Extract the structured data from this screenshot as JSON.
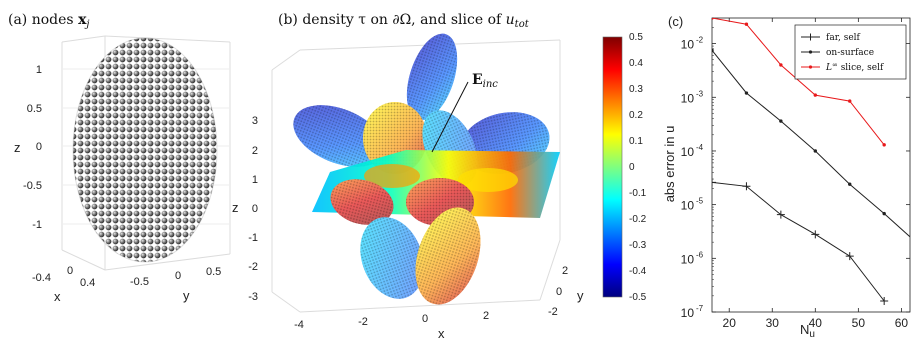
{
  "panel_a": {
    "title": "(a) nodes",
    "title_math": "x",
    "title_sub": "j",
    "zlabel": "z",
    "xlabel": "x",
    "ylabel": "y",
    "zticks": [
      "1",
      "0.5",
      "0",
      "-0.5",
      "-1"
    ],
    "xticks": [
      "-0.4",
      "0",
      "0.4"
    ],
    "yticks": [
      "-0.5",
      "0",
      "0.5"
    ]
  },
  "panel_b": {
    "title": "(b) density τ on ∂Ω, and slice of",
    "title_math": "u",
    "title_sub": "tot",
    "annotation": "E",
    "annotation_sub": "inc",
    "zlabel": "z",
    "xlabel": "x",
    "ylabel": "y",
    "zticks": [
      "3",
      "2",
      "1",
      "0",
      "-1",
      "-2",
      "-3"
    ],
    "xticks": [
      "-4",
      "-2",
      "0",
      "2"
    ],
    "yticks": [
      "2",
      "0",
      "-2"
    ],
    "colorbar_ticks": [
      "0.5",
      "0.4",
      "0.3",
      "0.2",
      "0.1",
      "0",
      "-0.1",
      "-0.2",
      "-0.3",
      "-0.4",
      "-0.5"
    ]
  },
  "chart_data": {
    "type": "line",
    "panel_label": "(c)",
    "xlabel": "N",
    "xlabel_sub": "u",
    "ylabel": "abs error in u",
    "yscale": "log",
    "xlim": [
      16,
      62
    ],
    "ylim": [
      1e-07,
      0.03
    ],
    "xticks": [
      20,
      30,
      40,
      50,
      60
    ],
    "xtick_labels": [
      "20",
      "30",
      "40",
      "50",
      "60"
    ],
    "ytick_labels": [
      "10",
      "10",
      "10",
      "10",
      "10",
      "10"
    ],
    "ytick_exponents": [
      "-2",
      "-3",
      "-4",
      "-5",
      "-6",
      "-7"
    ],
    "legend_position": "top-right",
    "series": [
      {
        "name": "far, self",
        "marker": "plus",
        "color": "#222222",
        "x": [
          16,
          24,
          32,
          40,
          48,
          56
        ],
        "y": [
          2.6e-05,
          2.2e-05,
          6.5e-06,
          2.8e-06,
          1.1e-06,
          1.6e-07
        ]
      },
      {
        "name": "on-surface",
        "marker": "dot",
        "color": "#222222",
        "x": [
          16,
          24,
          32,
          40,
          48,
          56,
          64
        ],
        "y": [
          0.0075,
          0.0012,
          0.00036,
          0.0001,
          2.4e-05,
          6.8e-06,
          1.8e-06
        ]
      },
      {
        "name": "L",
        "name_sup": "∞",
        "name_rest": " slice, self",
        "marker": "dot",
        "color": "#e8191b",
        "x": [
          16,
          24,
          32,
          40,
          48,
          56
        ],
        "y": [
          0.03,
          0.023,
          0.004,
          0.0011,
          0.00085,
          0.00013
        ]
      }
    ]
  }
}
